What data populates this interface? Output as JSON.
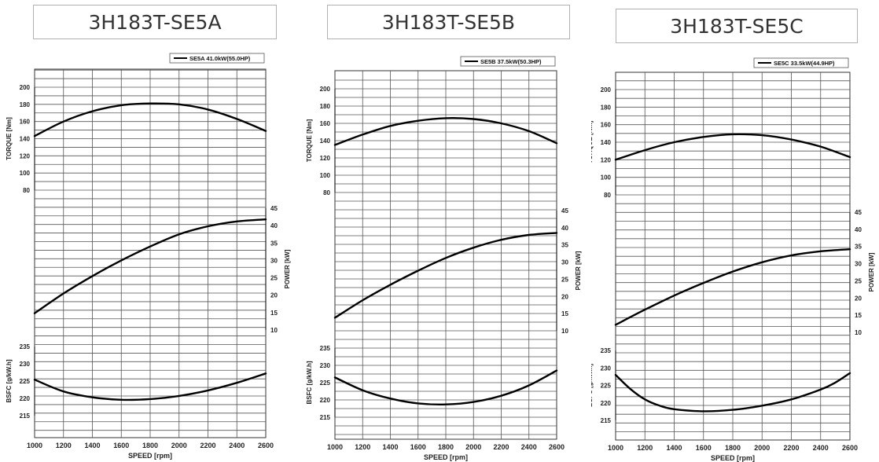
{
  "colors": {
    "curve": "#000000",
    "grid": "#555555",
    "title_border": "#b0b0b0"
  },
  "chart_data": [
    {
      "title": "3H183T-SE5A",
      "type": "line",
      "legend": "SE5A 41.0kW(55.0HP)",
      "legend_position": "top-right",
      "grid": true,
      "xlabel": "SPEED [rpm]",
      "xlim": [
        1000,
        2600
      ],
      "xticks": [
        "1000",
        "1200",
        "1400",
        "1600",
        "1800",
        "2000",
        "2200",
        "2400",
        "2600"
      ],
      "torque": {
        "ylabel": "TORQUE [Nm]",
        "ylim": [
          80,
          200
        ],
        "ticks": [
          "80",
          "100",
          "120",
          "140",
          "160",
          "180",
          "200"
        ],
        "x": [
          1000,
          1200,
          1400,
          1600,
          1800,
          2000,
          2200,
          2400,
          2600
        ],
        "y": [
          143,
          160,
          172,
          179,
          181,
          180,
          174,
          163,
          149
        ]
      },
      "power": {
        "ylabel": "POWER [kW]",
        "ylim": [
          10,
          45
        ],
        "ticks": [
          "10",
          "15",
          "20",
          "25",
          "30",
          "35",
          "40",
          "45"
        ],
        "x": [
          1000,
          1200,
          1400,
          1600,
          1800,
          2000,
          2200,
          2400,
          2600
        ],
        "y": [
          14.8,
          20.5,
          25.5,
          30.0,
          34.0,
          37.5,
          39.8,
          41.2,
          41.8
        ]
      },
      "bsfc": {
        "ylabel": "BSFC [g/kW.h]",
        "ylim": [
          215,
          235
        ],
        "ticks": [
          "215",
          "220",
          "225",
          "230",
          "235"
        ],
        "x": [
          1000,
          1200,
          1400,
          1600,
          1800,
          2000,
          2200,
          2400,
          2600
        ],
        "y": [
          225.4,
          222.0,
          220.3,
          219.6,
          219.8,
          220.7,
          222.3,
          224.5,
          227.2
        ]
      }
    },
    {
      "title": "3H183T-SE5B",
      "type": "line",
      "legend": "SE5B 37.5kW(50.3HP)",
      "legend_position": "top-right",
      "grid": true,
      "xlabel": "SPEED [rpm]",
      "xlim": [
        1000,
        2600
      ],
      "xticks": [
        "1000",
        "1200",
        "1400",
        "1600",
        "1800",
        "2000",
        "2200",
        "2400",
        "2600"
      ],
      "torque": {
        "ylabel": "TORQUE [Nm]",
        "ylim": [
          80,
          200
        ],
        "ticks": [
          "80",
          "100",
          "120",
          "140",
          "160",
          "180",
          "200"
        ],
        "x": [
          1000,
          1200,
          1400,
          1600,
          1800,
          2000,
          2200,
          2400,
          2600
        ],
        "y": [
          135,
          147,
          157,
          163,
          166,
          165,
          160,
          151,
          137
        ]
      },
      "power": {
        "ylabel": "POWER [kW]",
        "ylim": [
          10,
          45
        ],
        "ticks": [
          "10",
          "15",
          "20",
          "25",
          "30",
          "35",
          "40",
          "45"
        ],
        "x": [
          1000,
          1200,
          1400,
          1600,
          1800,
          2000,
          2200,
          2400,
          2600
        ],
        "y": [
          13.8,
          18.9,
          23.4,
          27.5,
          31.2,
          34.2,
          36.5,
          37.9,
          38.5
        ]
      },
      "bsfc": {
        "ylabel": "BSFC [g/kW.h]",
        "ylim": [
          215,
          235
        ],
        "ticks": [
          "215",
          "220",
          "225",
          "230",
          "235"
        ],
        "x": [
          1000,
          1200,
          1400,
          1600,
          1800,
          2000,
          2200,
          2400,
          2600
        ],
        "y": [
          226.5,
          222.8,
          220.4,
          219.0,
          218.7,
          219.4,
          221.2,
          224.2,
          228.5
        ]
      }
    },
    {
      "title": "3H183T-SE5C",
      "type": "line",
      "legend": "SE5C 33.5kW(44.9HP)",
      "legend_position": "top-right",
      "grid": true,
      "xlabel": "SPEED [rpm]",
      "xlim": [
        1000,
        2600
      ],
      "xticks": [
        "1000",
        "1200",
        "1400",
        "1600",
        "1800",
        "2000",
        "2200",
        "2400",
        "2600"
      ],
      "torque": {
        "ylabel": "TORQUE [Nm]",
        "ylim": [
          80,
          200
        ],
        "ticks": [
          "80",
          "100",
          "120",
          "140",
          "160",
          "180",
          "200"
        ],
        "x": [
          1000,
          1200,
          1400,
          1600,
          1800,
          2000,
          2200,
          2400,
          2600
        ],
        "y": [
          120,
          131,
          140,
          146,
          149,
          148,
          143,
          135,
          123
        ]
      },
      "power": {
        "ylabel": "POWER [kW]",
        "ylim": [
          10,
          45
        ],
        "ticks": [
          "10",
          "15",
          "20",
          "25",
          "30",
          "35",
          "40",
          "45"
        ],
        "x": [
          1000,
          1200,
          1400,
          1600,
          1800,
          2000,
          2200,
          2400,
          2600
        ],
        "y": [
          12.2,
          16.6,
          20.7,
          24.4,
          27.7,
          30.4,
          32.4,
          33.6,
          34.2
        ]
      },
      "bsfc": {
        "ylabel": "BSFC [g/kW.h]",
        "ylim": [
          215,
          235
        ],
        "ticks": [
          "215",
          "220",
          "225",
          "230",
          "235"
        ],
        "x": [
          1000,
          1100,
          1200,
          1300,
          1400,
          1600,
          1800,
          2000,
          2200,
          2400,
          2500,
          2600
        ],
        "y": [
          228.0,
          224.0,
          221.0,
          219.2,
          218.2,
          217.6,
          218.0,
          219.2,
          221.0,
          223.8,
          225.8,
          228.5
        ]
      }
    }
  ]
}
